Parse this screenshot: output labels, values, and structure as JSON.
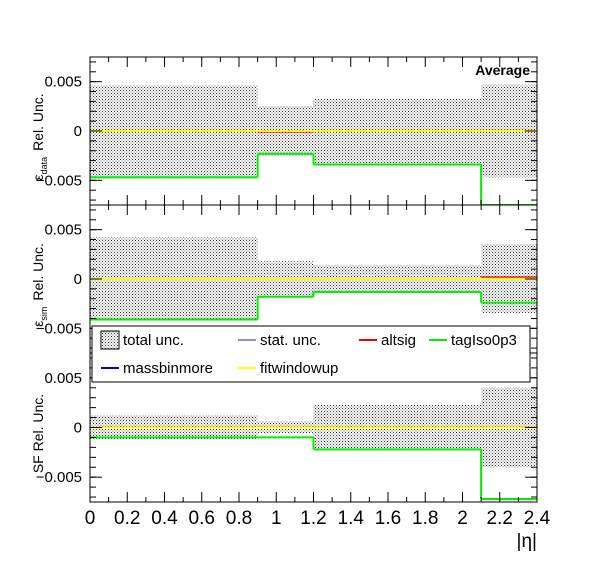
{
  "chart_data": {
    "type": "step",
    "x_edges": [
      0,
      0.9,
      1.2,
      2.1,
      2.4
    ],
    "xlabel": "|η|",
    "xlim": [
      0,
      2.4
    ],
    "x_ticks": [
      "0",
      "0.2",
      "0.4",
      "0.6",
      "0.8",
      "1",
      "1.2",
      "1.4",
      "1.6",
      "1.8",
      "2",
      "2.2",
      "2.4"
    ],
    "annotation": "Average",
    "legend": {
      "entries": [
        "total unc.",
        "stat. unc.",
        "altsig",
        "tagIso0p3",
        "massbinmore",
        "fitwindowup"
      ],
      "placement": "inside lower panel, top"
    },
    "colors": {
      "total": "#333333",
      "stat": "#1a1aa8",
      "altsig": "#ff0000",
      "tagIso0p3": "#00ee00",
      "massbinmore": "#0000cc",
      "fitwindowup": "#ffff00"
    },
    "panels": [
      {
        "ylabel_main": "Rel. Unc.",
        "ylabel_eps": "ε",
        "ylabel_sub": "data",
        "ylim": [
          -0.0075,
          0.0075
        ],
        "y_ticks": [
          "0.005",
          "0",
          "−0.005"
        ],
        "y_tick_values": [
          0.005,
          0,
          -0.005
        ],
        "total_unc": [
          0.0046,
          0.0025,
          0.0033,
          0.0047
        ],
        "series": [
          {
            "name": "tagIso0p3",
            "values": [
              -0.0047,
              -0.0023,
              -0.0034,
              -0.0075
            ]
          },
          {
            "name": "altsig",
            "values": [
              0,
              -0.0001,
              0,
              5e-05
            ]
          },
          {
            "name": "fitwindowup",
            "values": [
              0,
              0,
              0,
              0
            ]
          }
        ]
      },
      {
        "ylabel_main": "Rel. Unc.",
        "ylabel_eps": "ε",
        "ylabel_sub": "sim",
        "ylim": [
          -0.0075,
          0.0075
        ],
        "y_ticks": [
          "0.005",
          "0",
          "−0.005"
        ],
        "y_tick_values": [
          0.005,
          0,
          -0.005
        ],
        "total_unc": [
          0.0042,
          0.0018,
          0.0014,
          0.0035
        ],
        "series": [
          {
            "name": "tagIso0p3",
            "values": [
              -0.0041,
              -0.0018,
              -0.0013,
              -0.0024
            ]
          },
          {
            "name": "altsig",
            "values": [
              0,
              0,
              0,
              0.0002
            ]
          },
          {
            "name": "fitwindowup",
            "values": [
              0,
              0,
              0,
              0
            ]
          }
        ]
      },
      {
        "ylabel_main": "SF Rel. Unc.",
        "ylabel_eps": "",
        "ylabel_sub": "",
        "ylim": [
          -0.0075,
          0.0075
        ],
        "y_ticks": [
          "0.005",
          "0",
          "−0.005"
        ],
        "y_tick_values": [
          0.005,
          0,
          -0.005
        ],
        "total_unc": [
          0.0012,
          0.0006,
          0.0023,
          0.004
        ],
        "series": [
          {
            "name": "tagIso0p3",
            "values": [
              -0.001,
              -0.001,
              -0.0022,
              -0.0072
            ]
          },
          {
            "name": "altsig",
            "values": [
              0,
              5e-05,
              0,
              5e-05
            ]
          },
          {
            "name": "fitwindowup",
            "values": [
              0,
              0,
              0,
              0
            ]
          }
        ]
      }
    ]
  }
}
